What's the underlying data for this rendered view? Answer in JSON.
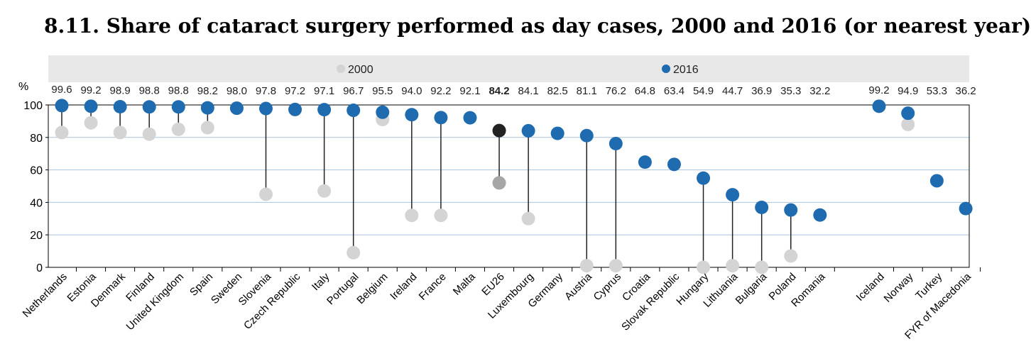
{
  "title": "8.11.  Share of cataract surgery performed as day cases, 2000 and 2016 (or nearest year)",
  "chart_data": {
    "type": "scatter",
    "ylabel": "%",
    "ylim": [
      0,
      100
    ],
    "yticks": [
      0,
      20,
      40,
      60,
      80,
      100
    ],
    "legend": {
      "position": "top",
      "entries": [
        "2000",
        "2016"
      ]
    },
    "colors": {
      "series_2000": "#d4d4d4",
      "series_2016": "#1f6bb0",
      "eu_2000": "#a6a6a6",
      "eu_2016": "#222222",
      "band": "#e8e8e8",
      "grid": "#a9c4de",
      "stem": "#222222"
    },
    "categories": [
      "Netherlands",
      "Estonia",
      "Denmark",
      "Finland",
      "United Kingdom",
      "Spain",
      "Sweden",
      "Slovenia",
      "Czech Republic",
      "Italy",
      "Portugal",
      "Belgium",
      "Ireland",
      "France",
      "Malta",
      "EU26",
      "Luxembourg",
      "Germany",
      "Austria",
      "Cyprus",
      "Croatia",
      "Slovak Republic",
      "Hungary",
      "Lithuania",
      "Bulgaria",
      "Poland",
      "Romania",
      "Iceland",
      "Norway",
      "Turkey",
      "FYR of Macedonia"
    ],
    "highlight": "EU26",
    "series": [
      {
        "name": "2000",
        "values": [
          83,
          89,
          83,
          82,
          85,
          86,
          98,
          45,
          null,
          47,
          9,
          91,
          32,
          32,
          null,
          52,
          30,
          null,
          1,
          1,
          null,
          null,
          0,
          1,
          0,
          7,
          null,
          null,
          88,
          null,
          null
        ]
      },
      {
        "name": "2016",
        "values": [
          99.6,
          99.2,
          98.9,
          98.8,
          98.8,
          98.2,
          98.0,
          97.8,
          97.2,
          97.1,
          96.7,
          95.5,
          94.0,
          92.2,
          92.1,
          84.2,
          84.1,
          82.5,
          81.1,
          76.2,
          64.8,
          63.4,
          54.9,
          44.7,
          36.9,
          35.3,
          32.2,
          99.2,
          94.9,
          53.3,
          36.2
        ]
      }
    ],
    "data_labels": [
      "99.6",
      "99.2",
      "98.9",
      "98.8",
      "98.8",
      "98.2",
      "98.0",
      "97.8",
      "97.2",
      "97.1",
      "96.7",
      "95.5",
      "94.0",
      "92.2",
      "92.1",
      "84.2",
      "84.1",
      "82.5",
      "81.1",
      "76.2",
      "64.8",
      "63.4",
      "54.9",
      "44.7",
      "36.9",
      "35.3",
      "32.2",
      "99.2",
      "94.9",
      "53.3",
      "36.2"
    ]
  }
}
